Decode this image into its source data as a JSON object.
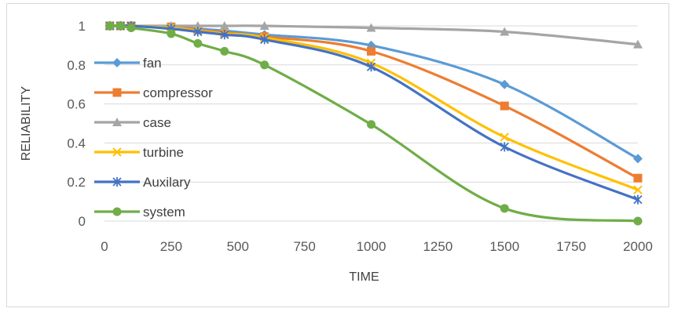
{
  "chart_data": {
    "type": "line",
    "title": "",
    "xlabel": "TIME",
    "ylabel": "RELIABILITY",
    "xlim": [
      0,
      2000
    ],
    "ylim": [
      0,
      1
    ],
    "x_ticks": [
      "0",
      "250",
      "500",
      "750",
      "1000",
      "1250",
      "1500",
      "1750",
      "2000"
    ],
    "y_ticks": [
      "0",
      "0.2",
      "0.4",
      "0.6",
      "0.8",
      "1"
    ],
    "grid": "horizontal",
    "legend_position": "left",
    "x": [
      20,
      60,
      100,
      250,
      350,
      450,
      600,
      1000,
      1500,
      2000
    ],
    "series": [
      {
        "name": "fan",
        "color": "#5B9BD5",
        "marker": "diamond",
        "values": [
          1,
          1,
          1,
          0.995,
          0.985,
          0.975,
          0.955,
          0.9,
          0.7,
          0.32
        ]
      },
      {
        "name": "compressor",
        "color": "#ED7D31",
        "marker": "square",
        "values": [
          1,
          1,
          1,
          0.995,
          0.98,
          0.965,
          0.945,
          0.87,
          0.59,
          0.22
        ]
      },
      {
        "name": "case",
        "color": "#A5A5A5",
        "marker": "triangle",
        "values": [
          1,
          1,
          1,
          1,
          1,
          1,
          1,
          0.99,
          0.97,
          0.905
        ]
      },
      {
        "name": "turbine",
        "color": "#FFC000",
        "marker": "x",
        "values": [
          1,
          1,
          1,
          0.99,
          0.975,
          0.96,
          0.94,
          0.81,
          0.43,
          0.16
        ]
      },
      {
        "name": "Auxilary",
        "color": "#4472C4",
        "marker": "asterisk",
        "values": [
          1,
          1,
          1,
          0.985,
          0.97,
          0.955,
          0.93,
          0.79,
          0.38,
          0.11
        ]
      },
      {
        "name": "system",
        "color": "#70AD47",
        "marker": "circle",
        "values": [
          1,
          1,
          0.99,
          0.96,
          0.91,
          0.87,
          0.8,
          0.495,
          0.065,
          0.0
        ]
      }
    ]
  }
}
